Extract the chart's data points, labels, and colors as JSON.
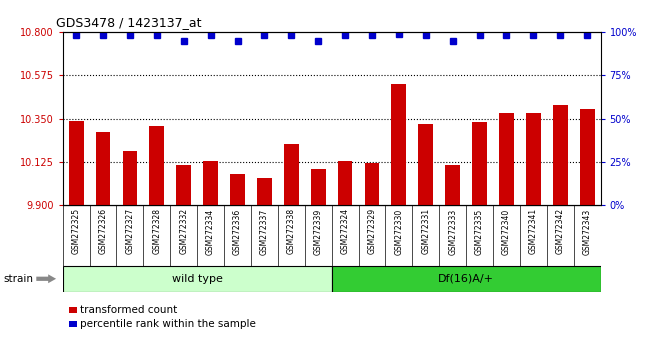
{
  "title": "GDS3478 / 1423137_at",
  "categories": [
    "GSM272325",
    "GSM272326",
    "GSM272327",
    "GSM272328",
    "GSM272332",
    "GSM272334",
    "GSM272336",
    "GSM272337",
    "GSM272338",
    "GSM272339",
    "GSM272324",
    "GSM272329",
    "GSM272330",
    "GSM272331",
    "GSM272333",
    "GSM272335",
    "GSM272340",
    "GSM272341",
    "GSM272342",
    "GSM272343"
  ],
  "bar_values": [
    10.34,
    10.28,
    10.18,
    10.31,
    10.11,
    10.13,
    10.06,
    10.04,
    10.22,
    10.09,
    10.13,
    10.12,
    10.53,
    10.32,
    10.11,
    10.33,
    10.38,
    10.38,
    10.42,
    10.4
  ],
  "percentile_values": [
    98,
    98,
    98,
    98,
    95,
    98,
    95,
    98,
    98,
    95,
    98,
    98,
    99,
    98,
    95,
    98,
    98,
    98,
    98,
    98
  ],
  "bar_color": "#cc0000",
  "percentile_color": "#0000cc",
  "ylim_left": [
    9.9,
    10.8
  ],
  "ylim_right": [
    0,
    100
  ],
  "yticks_left": [
    9.9,
    10.125,
    10.35,
    10.575,
    10.8
  ],
  "yticks_right": [
    0,
    25,
    50,
    75,
    100
  ],
  "hlines": [
    10.125,
    10.35,
    10.575
  ],
  "wild_type_count": 10,
  "df_count": 10,
  "group_labels": [
    "wild type",
    "Df(16)A/+"
  ],
  "wt_color": "#ccffcc",
  "df_color": "#33cc33",
  "xlabel": "strain",
  "legend_items": [
    "transformed count",
    "percentile rank within the sample"
  ],
  "legend_colors": [
    "#cc0000",
    "#0000cc"
  ],
  "plot_bg": "#ffffff",
  "tick_area_bg": "#cccccc"
}
